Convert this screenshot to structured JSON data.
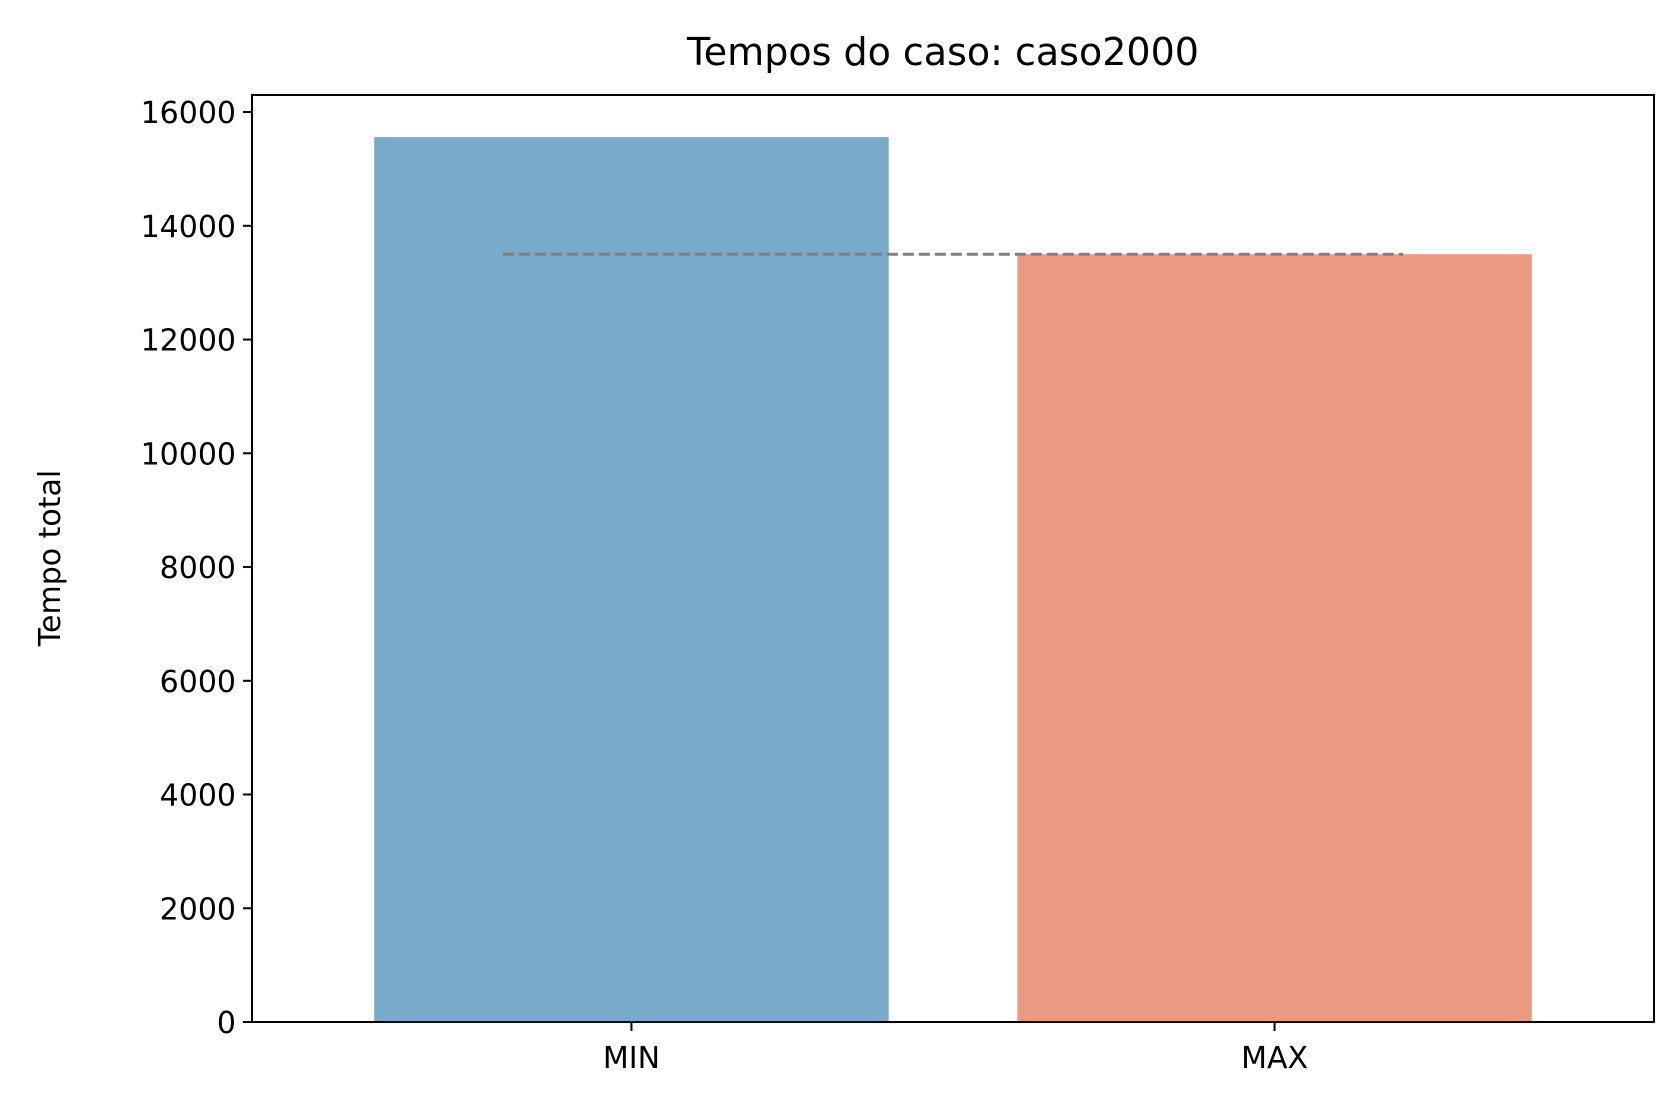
{
  "chart_data": {
    "type": "bar",
    "title": "Tempos do caso: caso2000",
    "xlabel": "",
    "ylabel": "Tempo total",
    "categories": [
      "MIN",
      "MAX"
    ],
    "values": [
      15560,
      13500
    ],
    "colors": [
      "#79aaca",
      "#ea9a83"
    ],
    "ylim": [
      0,
      16300
    ],
    "yticks": [
      0,
      2000,
      4000,
      6000,
      8000,
      10000,
      12000,
      14000,
      16000
    ],
    "reference_line": {
      "y": 13500,
      "color": "#808080",
      "style": "dashed"
    },
    "grid": false,
    "legend": "none"
  }
}
